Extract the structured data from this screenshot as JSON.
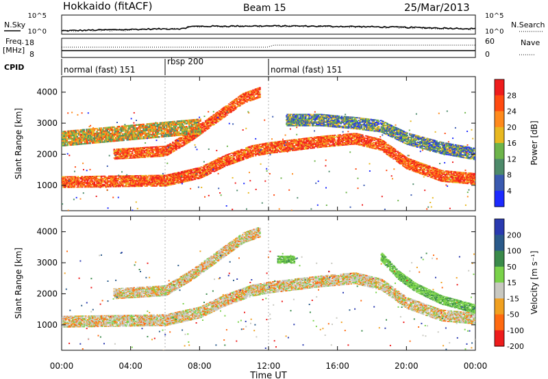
{
  "header": {
    "radar": "Hokkaido (fitACF)",
    "beam": "Beam 15",
    "date": "25/Mar/2013"
  },
  "noise_panel": {
    "left_label": "N.Sky",
    "right_label": "N.Search",
    "left_ticks": [
      "10^5",
      "10^0"
    ],
    "right_ticks": [
      "10^5",
      "10^0"
    ]
  },
  "freq_panel": {
    "left_label_1": "Freq.",
    "left_label_2": "[MHz]",
    "right_label": "Nave",
    "left_ticks": [
      "18",
      "8"
    ],
    "right_ticks": [
      "60",
      "0"
    ]
  },
  "cpid": {
    "label": "CPID",
    "segments": [
      {
        "label": "normal (fast) 151",
        "start_hour": 0,
        "end_hour": 6
      },
      {
        "label": "rbsp 200",
        "start_hour": 6,
        "end_hour": 12
      },
      {
        "label": "normal (fast) 151",
        "start_hour": 12,
        "end_hour": 24
      }
    ]
  },
  "chart_data": [
    {
      "type": "heatmap",
      "ylabel": "Slant Range [km]",
      "xlabel": "Time UT",
      "x_ticks": [
        "00:00",
        "04:00",
        "08:00",
        "12:00",
        "16:00",
        "20:00",
        "00:00"
      ],
      "x_range_hours": [
        0,
        24
      ],
      "y_ticks": [
        1000,
        2000,
        3000,
        4000
      ],
      "ylim": [
        180,
        4500
      ],
      "colorbar": {
        "label": "Power [dB]",
        "ticks": [
          "28",
          "24",
          "20",
          "16",
          "12",
          "8",
          "4"
        ],
        "colors": [
          "#ee1c1c",
          "#ff4a10",
          "#ff8a1c",
          "#e8b820",
          "#6db44a",
          "#4d8a6a",
          "#3a5ab0",
          "#1c2aff"
        ]
      },
      "bands": [
        {
          "t": [
            0,
            6,
            8,
            9.5,
            11,
            12,
            15,
            17,
            18.5,
            20,
            22,
            24
          ],
          "r": [
            1100,
            1150,
            1400,
            1800,
            2100,
            2200,
            2400,
            2500,
            2300,
            1700,
            1300,
            1200
          ],
          "width_km": 380,
          "level": "high"
        },
        {
          "t": [
            3,
            6,
            7.5,
            8.5,
            9.5,
            10.5,
            11.5
          ],
          "r": [
            2000,
            2100,
            2600,
            3000,
            3400,
            3800,
            4000
          ],
          "width_km": 350,
          "level": "high"
        },
        {
          "t": [
            0,
            2,
            4,
            6,
            8
          ],
          "r": [
            2500,
            2600,
            2700,
            2800,
            2900
          ],
          "width_km": 500,
          "level": "mid"
        },
        {
          "t": [
            13,
            15,
            17,
            18.5,
            20,
            22,
            24
          ],
          "r": [
            3100,
            3100,
            3000,
            2900,
            2500,
            2200,
            2000
          ],
          "width_km": 400,
          "level": "low"
        }
      ]
    },
    {
      "type": "heatmap",
      "ylabel": "Slant Range [km]",
      "xlabel": "Time UT",
      "x_ticks": [
        "00:00",
        "04:00",
        "08:00",
        "12:00",
        "16:00",
        "20:00",
        "00:00"
      ],
      "x_range_hours": [
        0,
        24
      ],
      "y_ticks": [
        1000,
        2000,
        3000,
        4000
      ],
      "ylim": [
        180,
        4500
      ],
      "colorbar": {
        "label": "Velocity [m s⁻¹]",
        "ticks": [
          "200",
          "100",
          "50",
          "15",
          "-15",
          "-50",
          "-100",
          "-200"
        ],
        "colors": [
          "#2a3ab0",
          "#2a5a8a",
          "#3a8a4a",
          "#7ad24a",
          "#c8c8c0",
          "#f0a020",
          "#ff6a10",
          "#ee1c1c"
        ]
      },
      "bands": [
        {
          "t": [
            0,
            6,
            8,
            9.5,
            11,
            12,
            15,
            17,
            18.5,
            20,
            22,
            24
          ],
          "r": [
            1100,
            1150,
            1400,
            1800,
            2100,
            2200,
            2400,
            2500,
            2300,
            1700,
            1300,
            1200
          ],
          "width_km": 380,
          "level": "grey"
        },
        {
          "t": [
            3,
            6,
            7.5,
            8.5,
            9.5,
            10.5,
            11.5
          ],
          "r": [
            2000,
            2100,
            2600,
            3000,
            3400,
            3800,
            4000
          ],
          "width_km": 350,
          "level": "grey"
        },
        {
          "t": [
            12.5,
            13.5
          ],
          "r": [
            3100,
            3100
          ],
          "width_km": 250,
          "level": "green"
        },
        {
          "t": [
            18.5,
            19.5,
            20.5,
            22,
            24
          ],
          "r": [
            3200,
            2600,
            2200,
            1800,
            1500
          ],
          "width_km": 300,
          "level": "green"
        }
      ]
    }
  ]
}
